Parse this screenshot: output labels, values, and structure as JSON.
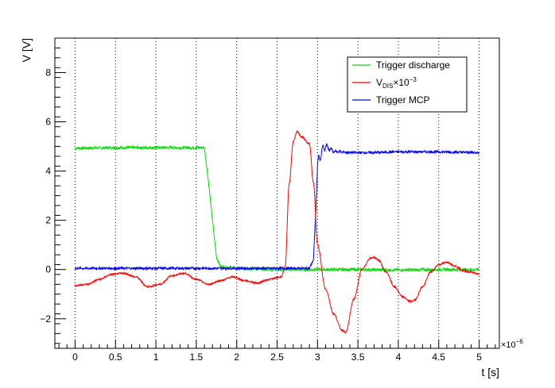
{
  "chart_data": {
    "type": "line",
    "xlabel": "t [s]",
    "ylabel": "V [V]",
    "x_multiplier_label": "×10",
    "x_multiplier_exp": "−6",
    "xlim": [
      -0.25,
      5.25
    ],
    "ylim": [
      -3.2,
      9.4
    ],
    "x_ticks": [
      0,
      0.5,
      1,
      1.5,
      2,
      2.5,
      3,
      3.5,
      4,
      4.5,
      5
    ],
    "x_tick_labels": [
      "0",
      "0.5",
      "1",
      "1.5",
      "2",
      "2.5",
      "3",
      "3.5",
      "4",
      "4.5",
      "5"
    ],
    "y_ticks": [
      -2,
      0,
      2,
      4,
      6,
      8
    ],
    "y_tick_labels": [
      "−2",
      "0",
      "2",
      "4",
      "6",
      "8"
    ],
    "grid": "vertical dotted",
    "legend_position": "top-right",
    "series": [
      {
        "name": "Trigger discharge",
        "color": "#00dd00",
        "x": [
          0,
          0.5,
          1.0,
          1.5,
          1.6,
          1.65,
          1.7,
          1.75,
          1.8,
          2.0,
          2.5,
          3.0,
          3.5,
          4.0,
          4.5,
          5.0
        ],
        "y": [
          4.93,
          4.95,
          4.95,
          4.95,
          4.95,
          3.6,
          2.0,
          0.5,
          0.12,
          0.05,
          0.0,
          0.0,
          0.0,
          -0.02,
          0.0,
          0.0
        ]
      },
      {
        "name": "V_DIS×10^-3",
        "legend_main": "V",
        "legend_sub": "DIS",
        "legend_suffix": "×10",
        "legend_exp": "−3",
        "color": "#ff0000",
        "x": [
          0,
          0.15,
          0.3,
          0.45,
          0.6,
          0.75,
          0.9,
          1.05,
          1.2,
          1.35,
          1.5,
          1.65,
          1.8,
          1.95,
          2.1,
          2.25,
          2.4,
          2.55,
          2.6,
          2.65,
          2.7,
          2.75,
          2.8,
          2.9,
          2.95,
          3.0,
          3.1,
          3.2,
          3.3,
          3.35,
          3.45,
          3.55,
          3.65,
          3.7,
          3.75,
          3.85,
          3.95,
          4.05,
          4.15,
          4.2,
          4.3,
          4.4,
          4.5,
          4.6,
          4.7,
          4.8,
          4.9,
          5.0
        ],
        "y": [
          -0.65,
          -0.6,
          -0.4,
          -0.2,
          -0.15,
          -0.3,
          -0.7,
          -0.6,
          -0.25,
          -0.15,
          -0.4,
          -0.6,
          -0.45,
          -0.3,
          -0.45,
          -0.55,
          -0.4,
          -0.3,
          0.1,
          3.5,
          5.2,
          5.6,
          5.4,
          5.1,
          3.5,
          1.0,
          -0.8,
          -1.8,
          -2.45,
          -2.55,
          -1.2,
          0.0,
          0.45,
          0.5,
          0.4,
          -0.1,
          -0.7,
          -1.1,
          -1.3,
          -1.25,
          -0.7,
          -0.1,
          0.2,
          0.3,
          0.15,
          -0.05,
          -0.1,
          -0.2
        ]
      },
      {
        "name": "Trigger MCP",
        "color": "#0000ff",
        "x": [
          0,
          0.5,
          1.0,
          1.5,
          2.0,
          2.5,
          2.9,
          2.95,
          2.98,
          3.0,
          3.05,
          3.1,
          3.2,
          3.4,
          3.7,
          4.0,
          4.5,
          5.0
        ],
        "y": [
          0.05,
          0.05,
          0.05,
          0.05,
          0.05,
          0.05,
          0.05,
          0.4,
          2.5,
          4.2,
          4.8,
          5.0,
          4.8,
          4.75,
          4.75,
          4.78,
          4.78,
          4.75
        ]
      }
    ]
  }
}
